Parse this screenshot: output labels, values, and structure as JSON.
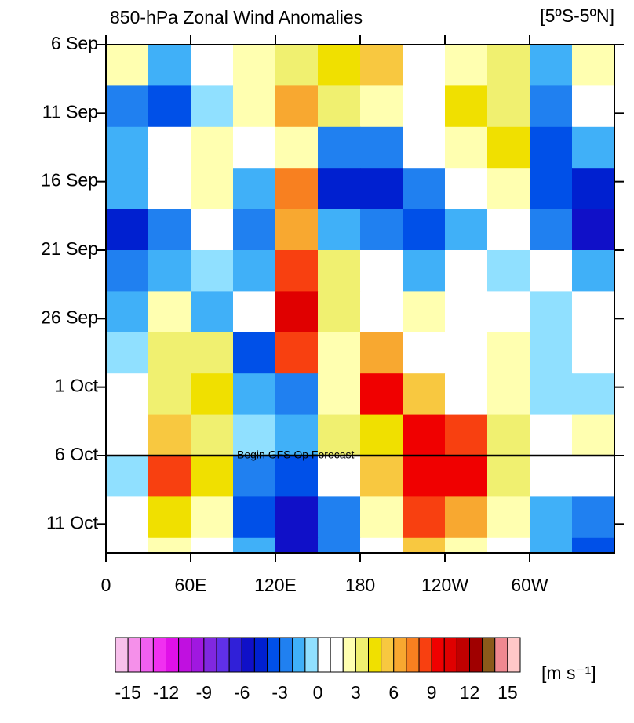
{
  "chart_data": {
    "type": "heatmap",
    "title": "850-hPa Zonal Wind Anomalies",
    "subtitle": "[5ºS-5ºN]",
    "xlim": [
      0,
      360
    ],
    "xticks": [
      0,
      {
        "value": 60,
        "label": "60E"
      },
      {
        "value": 120,
        "label": "120E"
      },
      180,
      {
        "value": 240,
        "label": "120W"
      },
      {
        "value": 300,
        "label": "60W"
      }
    ],
    "ylim": [
      0,
      37.1
    ],
    "yticks": [
      {
        "value": 0,
        "label": "6 Sep"
      },
      {
        "value": 5,
        "label": "11 Sep"
      },
      {
        "value": 10,
        "label": "16 Sep"
      },
      {
        "value": 15,
        "label": "21 Sep"
      },
      {
        "value": 20,
        "label": "26 Sep"
      },
      {
        "value": 25,
        "label": "1 Oct"
      },
      {
        "value": 30,
        "label": "6 Oct"
      },
      {
        "value": 35,
        "label": "11 Oct"
      }
    ],
    "x": [
      15,
      45,
      75,
      105,
      135,
      165,
      195,
      225,
      255,
      285,
      315,
      345
    ],
    "y": [
      1.5,
      4.5,
      7.5,
      10.5,
      13.5,
      16.5,
      19.5,
      22.5,
      25.5,
      28.5,
      31.5,
      34.5,
      37.5
    ],
    "values": [
      [
        2,
        -2,
        1,
        2,
        3,
        4,
        5,
        1,
        2,
        3,
        -2,
        2
      ],
      [
        -3,
        -4,
        -1,
        2,
        6,
        3,
        2,
        0,
        4,
        3,
        -3,
        0
      ],
      [
        -2,
        1,
        2,
        0,
        2,
        -3,
        -3,
        0,
        2,
        4,
        -4,
        -2
      ],
      [
        -2,
        0,
        2,
        -2,
        7,
        -5,
        -5,
        -3,
        0,
        2,
        -4,
        -5
      ],
      [
        -5,
        -3,
        0,
        -3,
        6,
        -2,
        -3,
        -4,
        -2,
        0,
        -3,
        -6
      ],
      [
        -3,
        -2,
        -1,
        -2,
        8,
        3,
        0,
        -2,
        0,
        -1,
        0,
        -2
      ],
      [
        -2,
        2,
        -2,
        0,
        10,
        3,
        1,
        2,
        1,
        0,
        -1,
        0
      ],
      [
        -1,
        3,
        3,
        -4,
        8,
        2,
        6,
        0,
        0,
        2,
        -1,
        0
      ],
      [
        0,
        3,
        4,
        -2,
        -3,
        2,
        9,
        5,
        1,
        2,
        -1,
        -1
      ],
      [
        1,
        5,
        3,
        -1,
        -2,
        3,
        4,
        9,
        8,
        3,
        0,
        2
      ],
      [
        -1,
        8,
        4,
        -3,
        -4,
        0,
        5,
        9,
        9,
        3,
        0,
        1
      ],
      [
        0,
        4,
        2,
        -4,
        -6,
        -3,
        2,
        8,
        6,
        2,
        -2,
        -3
      ],
      [
        0,
        2,
        1,
        -2,
        -6,
        -3,
        1,
        5,
        2,
        1,
        -2,
        -4
      ]
    ],
    "annotation": {
      "text": "Begin GFS Op Forecast",
      "y": 30
    },
    "colorbar": {
      "label": "[m s⁻¹]",
      "levels": [
        -15,
        -14,
        -13,
        -12,
        -11,
        -10,
        -9,
        -8,
        -7,
        -6,
        -5,
        -4,
        -3,
        -2,
        -1,
        0,
        1,
        2,
        3,
        4,
        5,
        6,
        7,
        8,
        9,
        10,
        11,
        12,
        13,
        14,
        15
      ],
      "labeled": [
        -15,
        -12,
        -9,
        -6,
        -3,
        0,
        3,
        6,
        9,
        12,
        15
      ],
      "colors": [
        "#f8c0ec",
        "#f590ea",
        "#f060f0",
        "#f030f0",
        "#e010e8",
        "#c010e0",
        "#a018e0",
        "#8028e0",
        "#6030e8",
        "#3020d8",
        "#1010c8",
        "#0020d0",
        "#0050e8",
        "#2080f0",
        "#40b0f8",
        "#90e0ff",
        "#ffffff",
        "#ffffff",
        "#ffffb0",
        "#f0f070",
        "#f0e000",
        "#f8c840",
        "#f8a830",
        "#f88020",
        "#f84010",
        "#f00000",
        "#e00000",
        "#c00000",
        "#a00000",
        "#8b5a1a",
        "#f08890",
        "#ffc8c8"
      ]
    }
  }
}
